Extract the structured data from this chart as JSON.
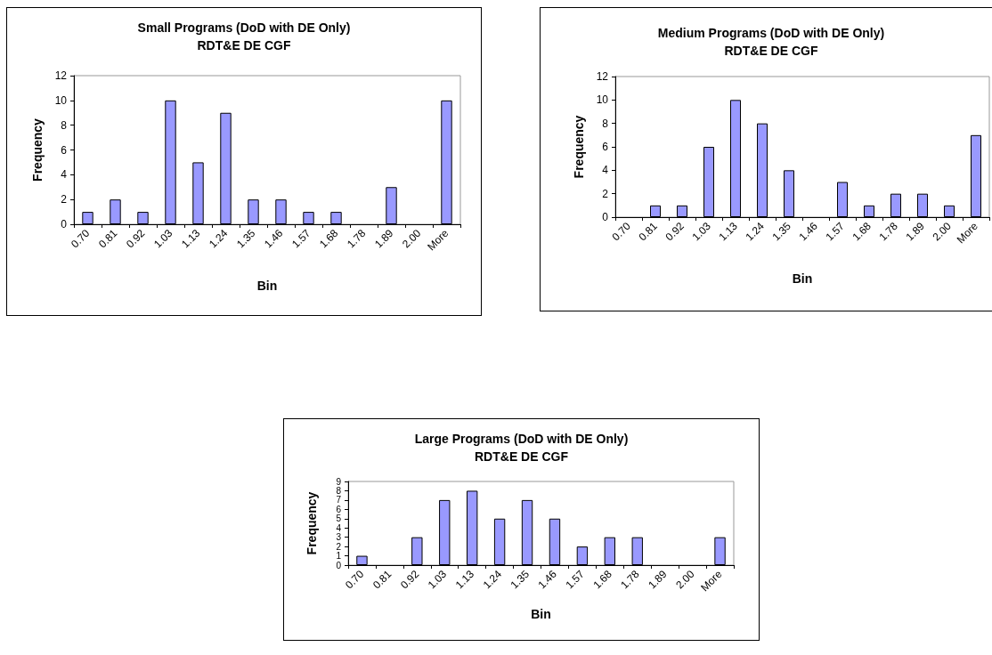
{
  "chart_data": [
    {
      "type": "bar",
      "title": "Small Programs (DoD with DE Only)",
      "subtitle": "RDT&E DE CGF",
      "xlabel": "Bin",
      "ylabel": "Frequency",
      "categories": [
        "0.70",
        "0.81",
        "0.92",
        "1.03",
        "1.13",
        "1.24",
        "1.35",
        "1.46",
        "1.57",
        "1.68",
        "1.78",
        "1.89",
        "2.00",
        "More"
      ],
      "series": [
        {
          "color": "#9999ff",
          "values": [
            1,
            2,
            1,
            10,
            5,
            9,
            2,
            2,
            1,
            1,
            0,
            3,
            0,
            10
          ]
        }
      ],
      "ylim": [
        0,
        12
      ],
      "yticks": [
        0,
        2,
        4,
        6,
        8,
        10,
        12
      ],
      "grid": false
    },
    {
      "type": "bar",
      "title": "Medium Programs (DoD with DE Only)",
      "subtitle": "RDT&E DE CGF",
      "xlabel": "Bin",
      "ylabel": "Frequency",
      "categories": [
        "0.70",
        "0.81",
        "0.92",
        "1.03",
        "1.13",
        "1.24",
        "1.35",
        "1.46",
        "1.57",
        "1.68",
        "1.78",
        "1.89",
        "2.00",
        "More"
      ],
      "series": [
        {
          "color": "#9999ff",
          "values": [
            0,
            1,
            1,
            6,
            10,
            8,
            4,
            0,
            3,
            1,
            2,
            2,
            1,
            7
          ]
        }
      ],
      "ylim": [
        0,
        12
      ],
      "yticks": [
        0,
        2,
        4,
        6,
        8,
        10,
        12
      ],
      "grid": false
    },
    {
      "type": "bar",
      "title": "Large Programs (DoD with DE Only)",
      "subtitle": "RDT&E DE CGF",
      "xlabel": "Bin",
      "ylabel": "Frequency",
      "categories": [
        "0.70",
        "0.81",
        "0.92",
        "1.03",
        "1.13",
        "1.24",
        "1.35",
        "1.46",
        "1.57",
        "1.68",
        "1.78",
        "1.89",
        "2.00",
        "More"
      ],
      "series": [
        {
          "color": "#9999ff",
          "values": [
            1,
            0,
            3,
            7,
            8,
            5,
            7,
            5,
            2,
            3,
            3,
            0,
            0,
            3
          ]
        }
      ],
      "ylim": [
        0,
        9
      ],
      "yticks": [
        0,
        1,
        2,
        3,
        4,
        5,
        6,
        7,
        8,
        9
      ],
      "grid": false
    }
  ]
}
